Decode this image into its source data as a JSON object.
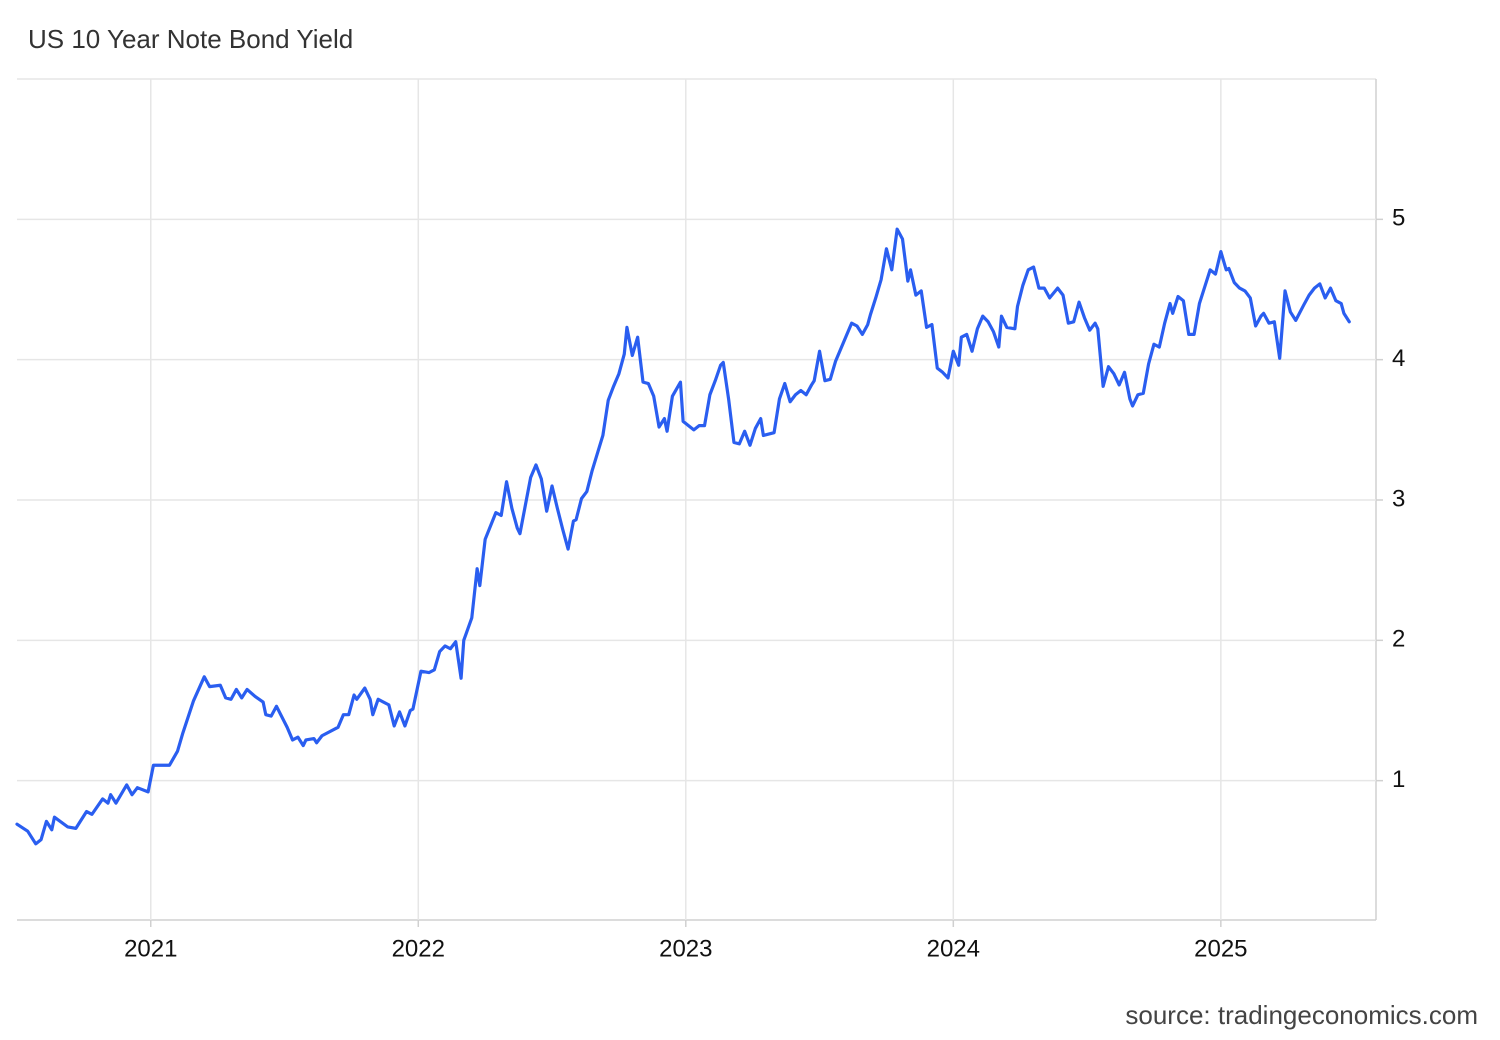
{
  "chart_data": {
    "type": "line",
    "title": "US 10 Year Note Bond Yield",
    "source": "source: tradingeconomics.com",
    "color": "#2a5ef0",
    "grid": true,
    "xlim": [
      2020.5,
      2025.58
    ],
    "xticks": [
      2021,
      2022,
      2023,
      2024,
      2025
    ],
    "ylim": [
      0,
      6
    ],
    "yticks": [
      1,
      2,
      3,
      4,
      5
    ],
    "x": [
      2020.5,
      2020.54,
      2020.57,
      2020.59,
      2020.61,
      2020.63,
      2020.64,
      2020.69,
      2020.72,
      2020.76,
      2020.78,
      2020.82,
      2020.84,
      2020.85,
      2020.87,
      2020.91,
      2020.93,
      2020.95,
      2020.99,
      2021.01,
      2021.07,
      2021.1,
      2021.12,
      2021.16,
      2021.2,
      2021.22,
      2021.26,
      2021.28,
      2021.3,
      2021.32,
      2021.34,
      2021.36,
      2021.39,
      2021.42,
      2021.43,
      2021.45,
      2021.47,
      2021.51,
      2021.53,
      2021.55,
      2021.57,
      2021.58,
      2021.61,
      2021.62,
      2021.64,
      2021.7,
      2021.72,
      2021.74,
      2021.76,
      2021.77,
      2021.8,
      2021.82,
      2021.83,
      2021.85,
      2021.89,
      2021.91,
      2021.93,
      2021.95,
      2021.97,
      2021.98,
      2022.01,
      2022.04,
      2022.06,
      2022.08,
      2022.1,
      2022.12,
      2022.14,
      2022.16,
      2022.17,
      2022.2,
      2022.22,
      2022.23,
      2022.25,
      2022.29,
      2022.31,
      2022.33,
      2022.35,
      2022.37,
      2022.38,
      2022.4,
      2022.42,
      2022.44,
      2022.46,
      2022.48,
      2022.5,
      2022.52,
      2022.54,
      2022.56,
      2022.58,
      2022.59,
      2022.61,
      2022.63,
      2022.65,
      2022.69,
      2022.71,
      2022.73,
      2022.75,
      2022.77,
      2022.78,
      2022.8,
      2022.82,
      2022.84,
      2022.86,
      2022.88,
      2022.9,
      2022.92,
      2022.93,
      2022.95,
      2022.98,
      2022.99,
      2023.03,
      2023.05,
      2023.07,
      2023.09,
      2023.11,
      2023.13,
      2023.14,
      2023.16,
      2023.18,
      2023.2,
      2023.22,
      2023.24,
      2023.26,
      2023.28,
      2023.29,
      2023.33,
      2023.35,
      2023.37,
      2023.39,
      2023.41,
      2023.43,
      2023.45,
      2023.47,
      2023.48,
      2023.5,
      2023.52,
      2023.54,
      2023.56,
      2023.6,
      2023.62,
      2023.64,
      2023.66,
      2023.68,
      2023.69,
      2023.71,
      2023.73,
      2023.75,
      2023.77,
      2023.79,
      2023.81,
      2023.83,
      2023.84,
      2023.86,
      2023.88,
      2023.9,
      2023.92,
      2023.94,
      2023.96,
      2023.98,
      2024.0,
      2024.02,
      2024.03,
      2024.05,
      2024.07,
      2024.09,
      2024.11,
      2024.13,
      2024.15,
      2024.17,
      2024.18,
      2024.2,
      2024.23,
      2024.24,
      2024.26,
      2024.28,
      2024.3,
      2024.32,
      2024.34,
      2024.36,
      2024.39,
      2024.41,
      2024.43,
      2024.45,
      2024.47,
      2024.49,
      2024.51,
      2024.53,
      2024.54,
      2024.56,
      2024.58,
      2024.6,
      2024.62,
      2024.64,
      2024.66,
      2024.67,
      2024.69,
      2024.71,
      2024.73,
      2024.75,
      2024.77,
      2024.79,
      2024.81,
      2024.82,
      2024.84,
      2024.86,
      2024.88,
      2024.9,
      2024.92,
      2024.94,
      2024.96,
      2024.98,
      2025.0,
      2025.02,
      2025.03,
      2025.05,
      2025.07,
      2025.09,
      2025.11,
      2025.13,
      2025.15,
      2025.16,
      2025.18,
      2025.2,
      2025.22,
      2025.24,
      2025.26,
      2025.28,
      2025.31,
      2025.33,
      2025.35,
      2025.37,
      2025.39,
      2025.41,
      2025.43,
      2025.45,
      2025.46,
      2025.48
    ],
    "values": [
      0.69,
      0.64,
      0.55,
      0.58,
      0.71,
      0.65,
      0.74,
      0.67,
      0.66,
      0.78,
      0.76,
      0.87,
      0.84,
      0.9,
      0.84,
      0.97,
      0.9,
      0.95,
      0.92,
      1.11,
      1.11,
      1.21,
      1.34,
      1.57,
      1.74,
      1.67,
      1.68,
      1.59,
      1.58,
      1.65,
      1.59,
      1.65,
      1.6,
      1.56,
      1.47,
      1.46,
      1.53,
      1.38,
      1.29,
      1.31,
      1.25,
      1.29,
      1.3,
      1.27,
      1.32,
      1.38,
      1.47,
      1.47,
      1.61,
      1.58,
      1.66,
      1.58,
      1.47,
      1.58,
      1.54,
      1.39,
      1.49,
      1.39,
      1.5,
      1.51,
      1.78,
      1.77,
      1.79,
      1.92,
      1.96,
      1.94,
      1.99,
      1.73,
      2.0,
      2.16,
      2.51,
      2.39,
      2.72,
      2.91,
      2.89,
      3.13,
      2.94,
      2.8,
      2.76,
      2.96,
      3.16,
      3.25,
      3.15,
      2.92,
      3.1,
      2.94,
      2.79,
      2.65,
      2.85,
      2.86,
      3.01,
      3.06,
      3.21,
      3.46,
      3.71,
      3.81,
      3.9,
      4.04,
      4.23,
      4.03,
      4.16,
      3.84,
      3.83,
      3.74,
      3.52,
      3.58,
      3.49,
      3.74,
      3.84,
      3.56,
      3.5,
      3.53,
      3.53,
      3.75,
      3.85,
      3.96,
      3.98,
      3.72,
      3.41,
      3.4,
      3.49,
      3.39,
      3.51,
      3.58,
      3.46,
      3.48,
      3.72,
      3.83,
      3.7,
      3.75,
      3.78,
      3.75,
      3.82,
      3.85,
      4.06,
      3.85,
      3.86,
      3.99,
      4.17,
      4.26,
      4.24,
      4.18,
      4.25,
      4.32,
      4.44,
      4.57,
      4.79,
      4.64,
      4.93,
      4.86,
      4.56,
      4.64,
      4.46,
      4.49,
      4.23,
      4.25,
      3.94,
      3.91,
      3.87,
      4.06,
      3.96,
      4.16,
      4.18,
      4.06,
      4.22,
      4.31,
      4.27,
      4.2,
      4.09,
      4.31,
      4.23,
      4.22,
      4.38,
      4.53,
      4.64,
      4.66,
      4.51,
      4.51,
      4.44,
      4.51,
      4.46,
      4.26,
      4.27,
      4.41,
      4.3,
      4.21,
      4.26,
      4.22,
      3.81,
      3.95,
      3.9,
      3.82,
      3.91,
      3.72,
      3.67,
      3.75,
      3.76,
      3.97,
      4.11,
      4.09,
      4.26,
      4.4,
      4.33,
      4.45,
      4.42,
      4.18,
      4.18,
      4.4,
      4.52,
      4.64,
      4.61,
      4.77,
      4.64,
      4.65,
      4.55,
      4.51,
      4.49,
      4.44,
      4.24,
      4.31,
      4.33,
      4.26,
      4.27,
      4.01,
      4.49,
      4.34,
      4.28,
      4.39,
      4.46,
      4.51,
      4.54,
      4.44,
      4.51,
      4.42,
      4.4,
      4.33,
      4.27
    ]
  }
}
